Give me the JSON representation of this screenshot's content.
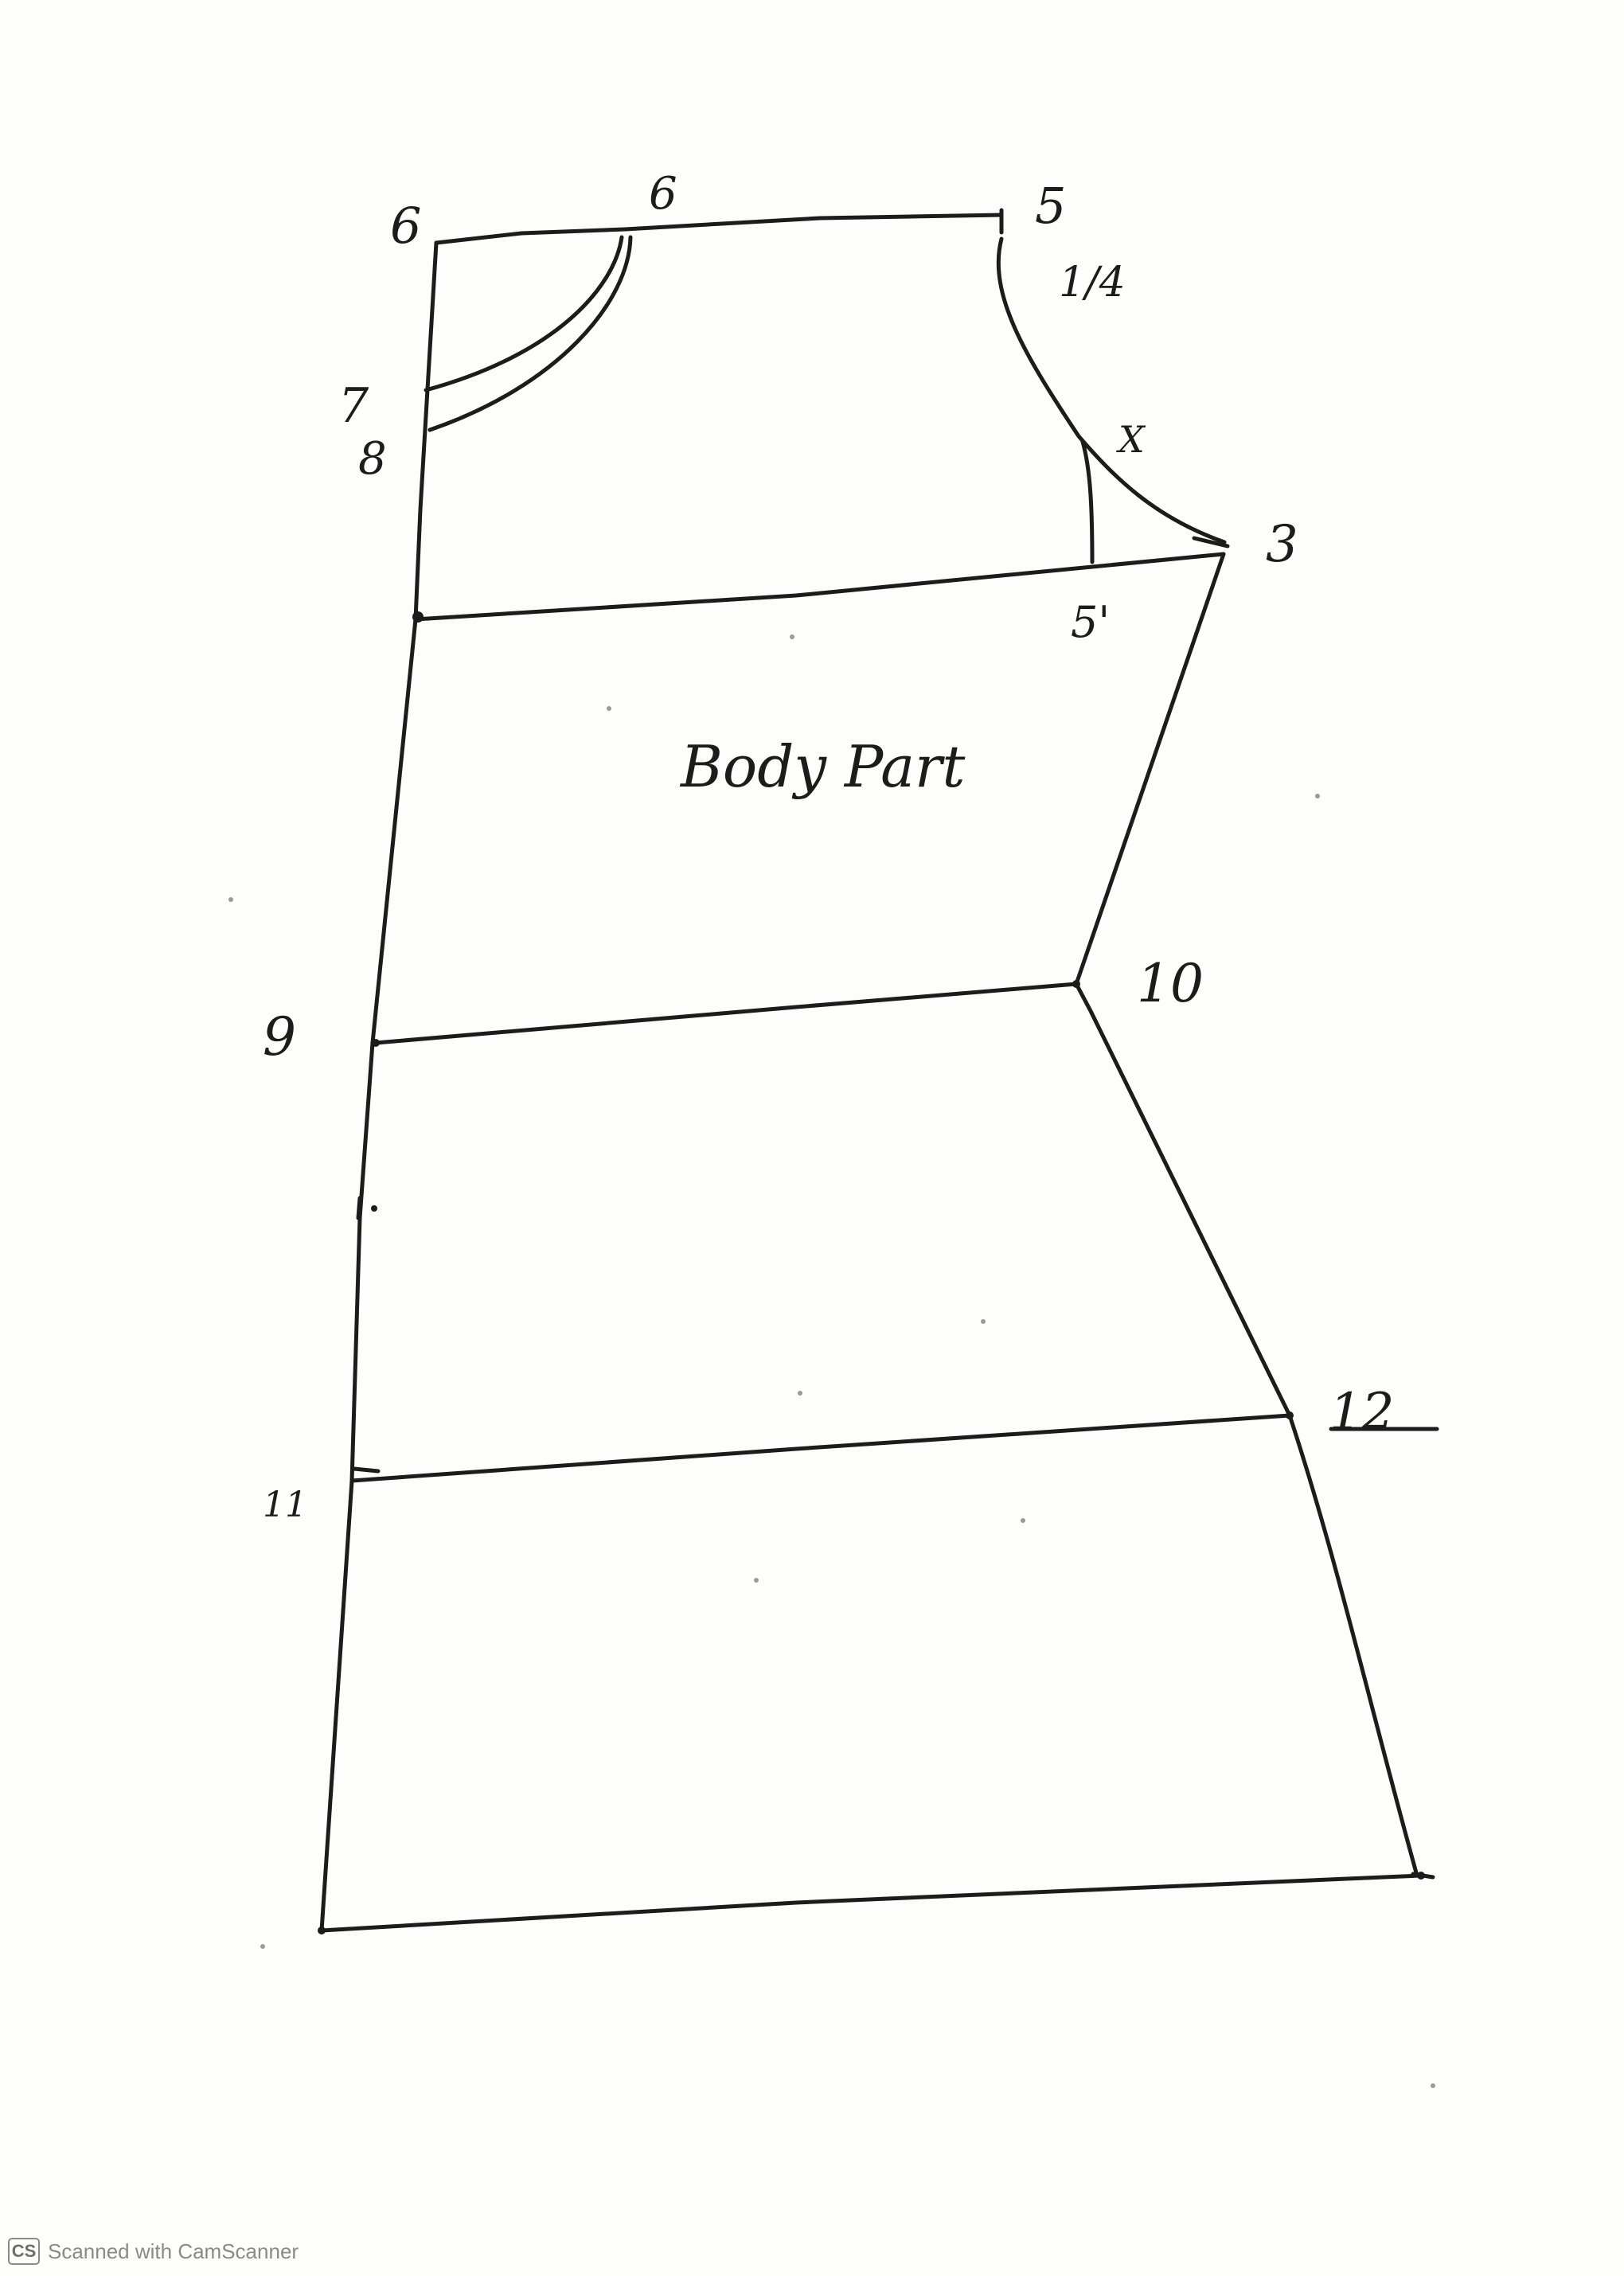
{
  "diagram": {
    "title": "Body Part",
    "labels": {
      "p6_left": "6",
      "p6_top": "6",
      "p5": "5",
      "p_quarter": "1/4",
      "p7": "7",
      "p8": "8",
      "px": "X",
      "p3": "3",
      "p51": "5'",
      "p9": "9",
      "p10": "10",
      "p11": "11",
      "p12": "12"
    }
  },
  "footer": {
    "logo_text": "CS",
    "scanner_text": "Scanned with CamScanner"
  },
  "colors": {
    "ink": "#1c1c1c",
    "paper": "#fdfdfc",
    "watermark": "#8a8a8a"
  }
}
